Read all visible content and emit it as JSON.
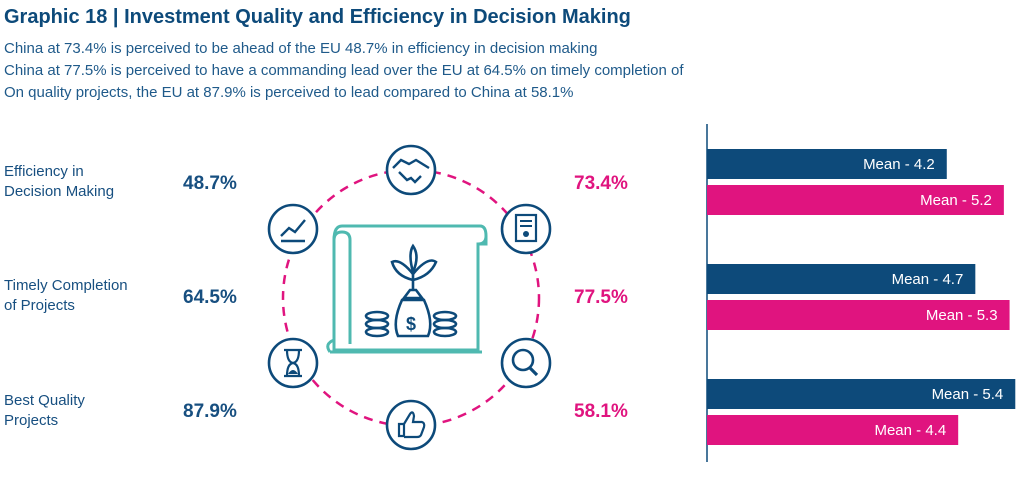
{
  "title": "Graphic 18 | Investment Quality and Efficiency in Decision Making",
  "subtitle_lines": [
    "China at 73.4% is perceived to be ahead of the EU 48.7% in efficiency in decision making",
    "China at 77.5% is perceived to have a commanding lead over the EU at 64.5% on timely completion of",
    "On quality projects, the EU at 87.9% is perceived to lead compared to China at 58.1%"
  ],
  "rows": [
    {
      "label_lines": [
        "Efficiency in",
        "Decision Making"
      ],
      "eu_pct": "48.7%",
      "china_pct": "73.4%"
    },
    {
      "label_lines": [
        "Timely Completion",
        "of Projects"
      ],
      "eu_pct": "64.5%",
      "china_pct": "77.5%"
    },
    {
      "label_lines": [
        "Best Quality",
        "Projects"
      ],
      "eu_pct": "87.9%",
      "china_pct": "58.1%"
    }
  ],
  "icons": [
    "handshake-icon",
    "certificate-icon",
    "magnifier-icon",
    "thumbs-up-icon",
    "hourglass-icon",
    "growth-chart-icon",
    "money-bag-scroll-icon"
  ],
  "colors": {
    "eu": "#0d4a7a",
    "china": "#e0147f",
    "teal": "#4fb9b0",
    "dashed": "#e0147f"
  },
  "chart_data": {
    "type": "bar",
    "orientation": "horizontal",
    "categories": [
      "Efficiency in Decision Making",
      "Timely Completion of Projects",
      "Best Quality Projects"
    ],
    "series": [
      {
        "color": "#0d4a7a",
        "values": [
          4.2,
          4.7,
          5.4
        ],
        "labels": [
          "Mean - 4.2",
          "Mean - 4.7",
          "Mean - 5.4"
        ]
      },
      {
        "color": "#e0147f",
        "values": [
          5.2,
          5.3,
          4.4
        ],
        "labels": [
          "Mean - 5.2",
          "Mean - 5.3",
          "Mean - 4.4"
        ]
      }
    ],
    "xlim": [
      0,
      5.5
    ]
  }
}
